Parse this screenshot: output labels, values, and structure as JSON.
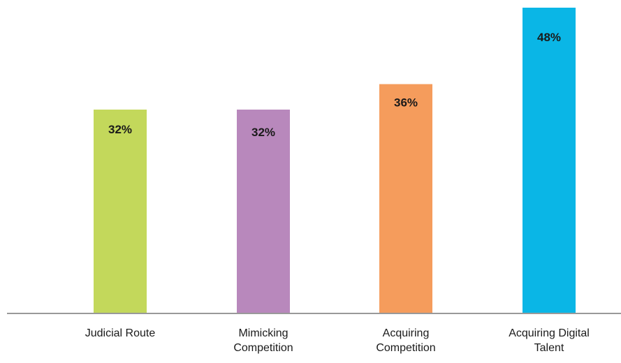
{
  "chart_data": {
    "type": "bar",
    "title": "",
    "xlabel": "",
    "ylabel": "",
    "ylim": [
      0,
      48
    ],
    "grid": false,
    "legend": "none",
    "categories": [
      [
        "Judicial Route"
      ],
      [
        "Mimicking",
        "Competition"
      ],
      [
        "Acquiring",
        "Competition"
      ],
      [
        "Acquiring Digital",
        "Talent"
      ]
    ],
    "values": [
      32,
      32,
      36,
      48
    ],
    "data_labels": [
      "32%",
      "32%",
      "36%",
      "48%"
    ],
    "colors": [
      "#c3d85b",
      "#b888bc",
      "#f59c5c",
      "#0ab6e6"
    ],
    "axis_color": "#999999",
    "label_color": "#1a1a1a"
  }
}
